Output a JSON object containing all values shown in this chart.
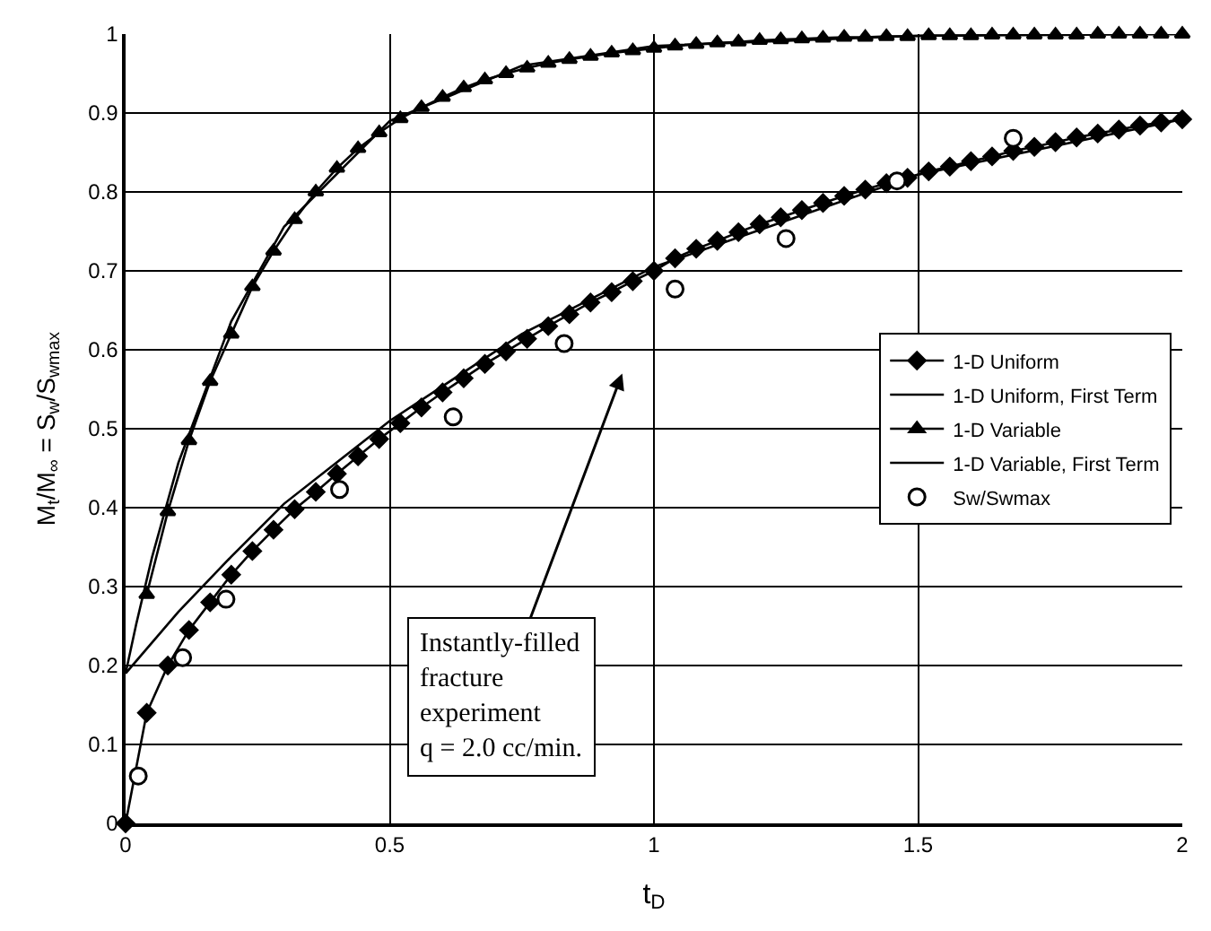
{
  "chart_data": {
    "type": "line",
    "xlabel": "t$_{D}$",
    "ylabel": "M$_{t}$/M$_{∞}$ = S$_{w}$/S$_{wmax}$",
    "xlim": [
      0,
      2
    ],
    "xticks": [
      0,
      0.5,
      1,
      1.5,
      2
    ],
    "ylim": [
      0,
      1
    ],
    "yticks": [
      0,
      0.1,
      0.2,
      0.3,
      0.4,
      0.5,
      0.6,
      0.7,
      0.8,
      0.9,
      1
    ],
    "grid": true,
    "legend": "right",
    "series": [
      {
        "name": "1-D Uniform",
        "color": "#000000",
        "marker": "diamond",
        "line_style": "solid",
        "x": [
          0,
          0.04,
          0.08,
          0.12,
          0.16,
          0.2,
          0.24,
          0.28,
          0.32,
          0.36,
          0.4,
          0.44,
          0.48,
          0.52,
          0.56,
          0.6,
          0.64,
          0.68,
          0.72,
          0.76,
          0.8,
          0.84,
          0.88,
          0.92,
          0.96,
          1.0,
          1.04,
          1.08,
          1.12,
          1.16,
          1.2,
          1.24,
          1.28,
          1.32,
          1.36,
          1.4,
          1.44,
          1.48,
          1.52,
          1.56,
          1.6,
          1.64,
          1.68,
          1.72,
          1.76,
          1.8,
          1.84,
          1.88,
          1.92,
          1.96,
          2.0
        ],
        "values": [
          0,
          0.14,
          0.2,
          0.245,
          0.28,
          0.315,
          0.345,
          0.372,
          0.398,
          0.42,
          0.443,
          0.465,
          0.487,
          0.507,
          0.527,
          0.546,
          0.564,
          0.582,
          0.598,
          0.614,
          0.63,
          0.645,
          0.66,
          0.673,
          0.687,
          0.7,
          0.716,
          0.728,
          0.738,
          0.749,
          0.759,
          0.768,
          0.777,
          0.786,
          0.795,
          0.803,
          0.811,
          0.818,
          0.826,
          0.832,
          0.839,
          0.845,
          0.852,
          0.857,
          0.863,
          0.869,
          0.874,
          0.879,
          0.884,
          0.888,
          0.892
        ]
      },
      {
        "name": "1-D Uniform, First Term",
        "color": "#000000",
        "marker": "none",
        "line_style": "solid",
        "x": [
          0,
          0.1,
          0.2,
          0.3,
          0.5,
          0.75,
          1,
          1.5,
          2
        ],
        "values": [
          0.19,
          0.268,
          0.338,
          0.405,
          0.51,
          0.62,
          0.705,
          0.822,
          0.892
        ]
      },
      {
        "name": "1-D Variable",
        "color": "#000000",
        "marker": "triangle",
        "line_style": "solid",
        "x": [
          0.04,
          0.08,
          0.12,
          0.16,
          0.2,
          0.24,
          0.28,
          0.32,
          0.36,
          0.4,
          0.44,
          0.48,
          0.52,
          0.56,
          0.6,
          0.64,
          0.68,
          0.72,
          0.76,
          0.8,
          0.84,
          0.88,
          0.92,
          0.96,
          1.0,
          1.04,
          1.08,
          1.12,
          1.16,
          1.2,
          1.24,
          1.28,
          1.32,
          1.36,
          1.4,
          1.44,
          1.48,
          1.52,
          1.56,
          1.6,
          1.64,
          1.68,
          1.72,
          1.76,
          1.8,
          1.84,
          1.88,
          1.92,
          1.96,
          2.0
        ],
        "values": [
          0.29,
          0.395,
          0.485,
          0.56,
          0.62,
          0.68,
          0.725,
          0.765,
          0.8,
          0.83,
          0.855,
          0.875,
          0.893,
          0.907,
          0.92,
          0.932,
          0.942,
          0.95,
          0.957,
          0.963,
          0.968,
          0.972,
          0.976,
          0.979,
          0.982,
          0.985,
          0.987,
          0.989,
          0.99,
          0.992,
          0.993,
          0.994,
          0.995,
          0.996,
          0.996,
          0.997,
          0.997,
          0.998,
          0.998,
          0.998,
          0.999,
          0.999,
          0.999,
          0.999,
          0.999,
          1.0,
          1.0,
          1.0,
          1.0,
          1.0
        ]
      },
      {
        "name": "1-D Variable, First Term",
        "color": "#000000",
        "marker": "none",
        "line_style": "solid",
        "x": [
          0,
          0.02,
          0.05,
          0.1,
          0.2,
          0.3,
          0.5,
          0.75,
          1,
          1.5,
          2
        ],
        "values": [
          0.19,
          0.252,
          0.337,
          0.457,
          0.636,
          0.756,
          0.89,
          0.96,
          0.985,
          0.998,
          1.0
        ]
      },
      {
        "name": "Sw/Swmax",
        "type": "scatter",
        "color": "#000000",
        "marker": "circle",
        "x": [
          0.024,
          0.108,
          0.19,
          0.405,
          0.62,
          0.83,
          1.04,
          1.25,
          1.46,
          1.68
        ],
        "values": [
          0.06,
          0.21,
          0.284,
          0.423,
          0.515,
          0.608,
          0.677,
          0.741,
          0.814,
          0.868
        ]
      }
    ],
    "annotations": [
      "Instantly-filled\nfracture\nexperiment\nq = 2.0 cc/min."
    ]
  }
}
